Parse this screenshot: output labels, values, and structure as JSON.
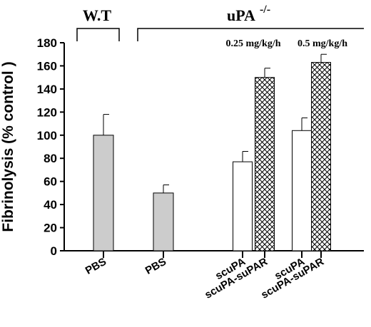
{
  "chart_data": {
    "type": "bar",
    "ylabel": "Fibrinolysis (% control )",
    "ylim": [
      0,
      180
    ],
    "yticks": [
      0,
      20,
      40,
      60,
      80,
      100,
      120,
      140,
      160,
      180
    ],
    "groups": [
      {
        "label": "W.T"
      },
      {
        "label": "uPA",
        "superscript": "-/-"
      }
    ],
    "dose_labels": [
      "0.25 mg/kg/h",
      "0.5 mg/kg/h"
    ],
    "bars": [
      {
        "label": "PBS",
        "value": 100,
        "error": 18,
        "fill": "gray"
      },
      {
        "label": "PBS",
        "value": 50,
        "error": 7,
        "fill": "gray"
      },
      {
        "label": "scuPA",
        "value": 77,
        "error": 9,
        "fill": "white"
      },
      {
        "label": "scuPA-suPAR",
        "value": 150,
        "error": 8,
        "fill": "crosshatch"
      },
      {
        "label": "scuPA",
        "value": 104,
        "error": 11,
        "fill": "white"
      },
      {
        "label": "scuPA-suPAR",
        "value": 163,
        "error": 7,
        "fill": "crosshatch"
      }
    ],
    "colors": {
      "gray": "#cccccc",
      "white": "#ffffff",
      "line": "#000000"
    }
  }
}
